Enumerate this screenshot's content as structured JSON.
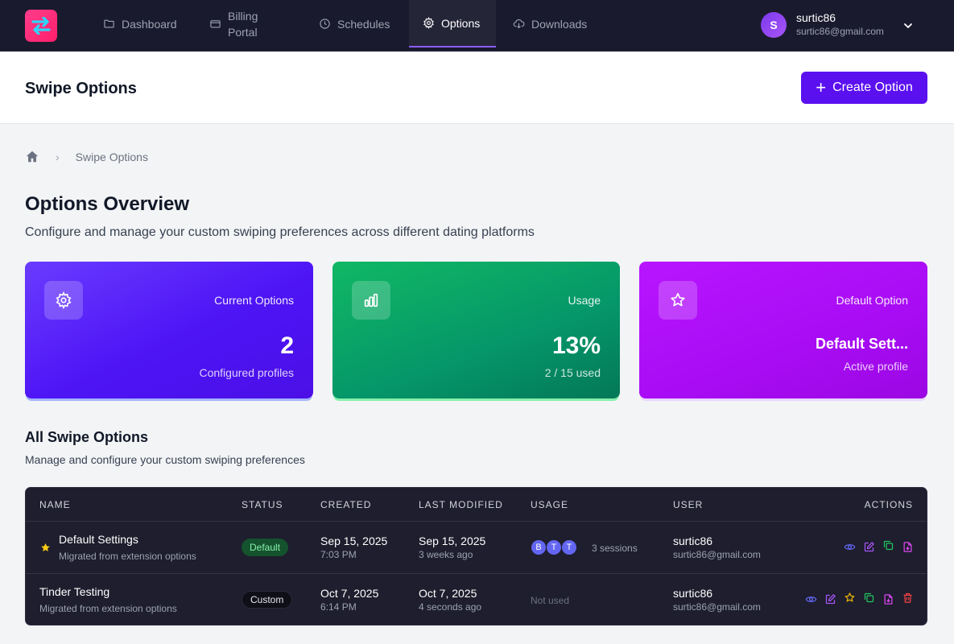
{
  "nav": {
    "items": [
      {
        "label": "Dashboard",
        "icon": "folder-icon"
      },
      {
        "label": "Billing Portal",
        "icon": "credit-card-icon"
      },
      {
        "label": "Schedules",
        "icon": "clock-icon"
      },
      {
        "label": "Options",
        "icon": "gear-icon",
        "active": true
      },
      {
        "label": "Downloads",
        "icon": "cloud-download-icon"
      }
    ],
    "user": {
      "initial": "S",
      "name": "surtic86",
      "email": "surtic86@gmail.com"
    }
  },
  "header": {
    "title": "Swipe Options",
    "create_label": "Create Option"
  },
  "breadcrumb": {
    "current": "Swipe Options"
  },
  "overview": {
    "title": "Options Overview",
    "subtitle": "Configure and manage your custom swiping preferences across different dating platforms"
  },
  "stats": [
    {
      "label": "Current Options",
      "value": "2",
      "sub": "Configured profiles",
      "icon": "gear-icon"
    },
    {
      "label": "Usage",
      "value": "13%",
      "sub": "2 / 15 used",
      "icon": "bar-chart-icon"
    },
    {
      "label": "Default Option",
      "value": "Default Sett...",
      "sub": "Active profile",
      "icon": "star-icon"
    }
  ],
  "list": {
    "title": "All Swipe Options",
    "subtitle": "Manage and configure your custom swiping preferences"
  },
  "table": {
    "headers": [
      "NAME",
      "STATUS",
      "CREATED",
      "LAST MODIFIED",
      "USAGE",
      "USER",
      "ACTIONS"
    ],
    "rows": [
      {
        "name": "Default Settings",
        "desc": "Migrated from extension options",
        "status": "Default",
        "created_date": "Sep 15, 2025",
        "created_time": "7:03 PM",
        "modified_date": "Sep 15, 2025",
        "modified_rel": "3 weeks ago",
        "usage_avatars": [
          "B",
          "T",
          "T"
        ],
        "usage_text": "3 sessions",
        "user": "surtic86",
        "email": "surtic86@gmail.com"
      },
      {
        "name": "Tinder Testing",
        "desc": "Migrated from extension options",
        "status": "Custom",
        "created_date": "Oct 7, 2025",
        "created_time": "6:14 PM",
        "modified_date": "Oct 7, 2025",
        "modified_rel": "4 seconds ago",
        "usage_text": "Not used",
        "user": "surtic86",
        "email": "surtic86@gmail.com"
      }
    ]
  },
  "colors": {
    "accent": "#5b10f0",
    "nav_bg": "#1a1a2e",
    "table_bg": "#1e1e2e"
  }
}
